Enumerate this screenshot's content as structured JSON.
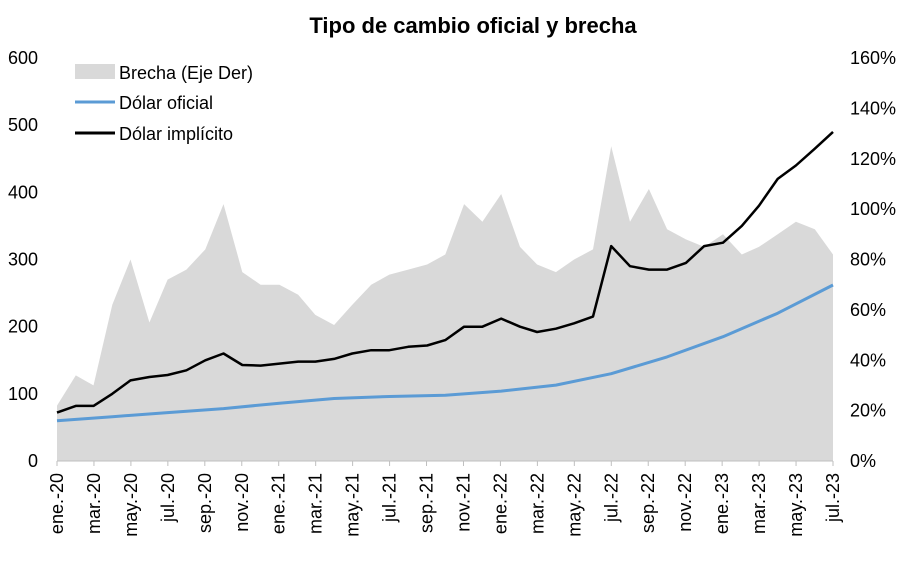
{
  "chart_data": {
    "type": "area+line",
    "title": "Tipo de cambio oficial y brecha",
    "categories": [
      "ene.-20",
      "mar.-20",
      "may.-20",
      "jul.-20",
      "sep.-20",
      "nov.-20",
      "ene.-21",
      "mar.-21",
      "may.-21",
      "jul.-21",
      "sep.-21",
      "nov.-21",
      "ene.-22",
      "mar.-22",
      "may.-22",
      "jul.-22",
      "sep.-22",
      "nov.-22",
      "ene.-23",
      "mar.-23",
      "may.-23",
      "jul.-23"
    ],
    "left_axis": {
      "ticks": [
        "0",
        "100",
        "200",
        "300",
        "400",
        "500",
        "600"
      ],
      "range": [
        0,
        600
      ]
    },
    "right_axis": {
      "ticks": [
        "0%",
        "20%",
        "40%",
        "60%",
        "80%",
        "100%",
        "120%",
        "140%",
        "160%"
      ],
      "range": [
        0,
        1.6
      ]
    },
    "legend": {
      "placement": "top-left"
    },
    "colors": {
      "brecha": "#d9d9d9",
      "oficial": "#5b9bd5",
      "implicito": "#000000"
    },
    "series": [
      {
        "name": "Brecha (Eje Der)",
        "axis": "right",
        "kind": "area",
        "x": [
          "2020-01-01",
          "2020-02-01",
          "2020-03-01",
          "2020-04-01",
          "2020-05-01",
          "2020-06-01",
          "2020-07-01",
          "2020-08-01",
          "2020-09-01",
          "2020-10-01",
          "2020-11-01",
          "2020-12-01",
          "2021-01-01",
          "2021-02-01",
          "2021-03-01",
          "2021-04-01",
          "2021-05-01",
          "2021-06-01",
          "2021-07-01",
          "2021-08-01",
          "2021-09-01",
          "2021-10-01",
          "2021-11-01",
          "2021-12-01",
          "2022-01-01",
          "2022-02-01",
          "2022-03-01",
          "2022-04-01",
          "2022-05-01",
          "2022-06-01",
          "2022-07-01",
          "2022-08-01",
          "2022-09-01",
          "2022-10-01",
          "2022-11-01",
          "2022-12-01",
          "2023-01-01",
          "2023-02-01",
          "2023-03-01",
          "2023-04-01",
          "2023-05-01",
          "2023-06-01",
          "2023-07-01"
        ],
        "values": [
          0.22,
          0.34,
          0.3,
          0.62,
          0.8,
          0.55,
          0.72,
          0.76,
          0.84,
          1.02,
          0.75,
          0.7,
          0.7,
          0.66,
          0.58,
          0.54,
          0.62,
          0.7,
          0.74,
          0.76,
          0.78,
          0.82,
          1.02,
          0.95,
          1.06,
          0.85,
          0.78,
          0.75,
          0.8,
          0.84,
          1.25,
          0.95,
          1.08,
          0.92,
          0.88,
          0.85,
          0.9,
          0.82,
          0.85,
          0.9,
          0.95,
          0.92,
          0.82
        ]
      },
      {
        "name": "Dólar oficial",
        "axis": "left",
        "kind": "line",
        "x": [
          "2020-01-01",
          "2020-04-01",
          "2020-07-01",
          "2020-10-01",
          "2021-01-01",
          "2021-04-01",
          "2021-07-01",
          "2021-10-01",
          "2022-01-01",
          "2022-04-01",
          "2022-07-01",
          "2022-10-01",
          "2023-01-01",
          "2023-04-01",
          "2023-07-01"
        ],
        "values": [
          60,
          66,
          72,
          78,
          86,
          93,
          96,
          98,
          104,
          113,
          130,
          155,
          185,
          220,
          262
        ]
      },
      {
        "name": "Dólar implícito",
        "axis": "left",
        "kind": "line",
        "x": [
          "2020-01-01",
          "2020-02-01",
          "2020-03-01",
          "2020-04-01",
          "2020-05-01",
          "2020-06-01",
          "2020-07-01",
          "2020-08-01",
          "2020-09-01",
          "2020-10-01",
          "2020-11-01",
          "2020-12-01",
          "2021-01-01",
          "2021-02-01",
          "2021-03-01",
          "2021-04-01",
          "2021-05-01",
          "2021-06-01",
          "2021-07-01",
          "2021-08-01",
          "2021-09-01",
          "2021-10-01",
          "2021-11-01",
          "2021-12-01",
          "2022-01-01",
          "2022-02-01",
          "2022-03-01",
          "2022-04-01",
          "2022-05-01",
          "2022-06-01",
          "2022-07-01",
          "2022-08-01",
          "2022-09-01",
          "2022-10-01",
          "2022-11-01",
          "2022-12-01",
          "2023-01-01",
          "2023-02-01",
          "2023-03-01",
          "2023-04-01",
          "2023-05-01",
          "2023-06-01",
          "2023-07-01"
        ],
        "values": [
          72,
          82,
          82,
          100,
          120,
          125,
          128,
          135,
          150,
          160,
          143,
          142,
          145,
          148,
          148,
          152,
          160,
          165,
          165,
          170,
          172,
          180,
          200,
          200,
          212,
          200,
          192,
          197,
          205,
          215,
          320,
          290,
          285,
          285,
          295,
          320,
          325,
          350,
          380,
          420,
          440,
          465,
          490
        ]
      }
    ]
  }
}
